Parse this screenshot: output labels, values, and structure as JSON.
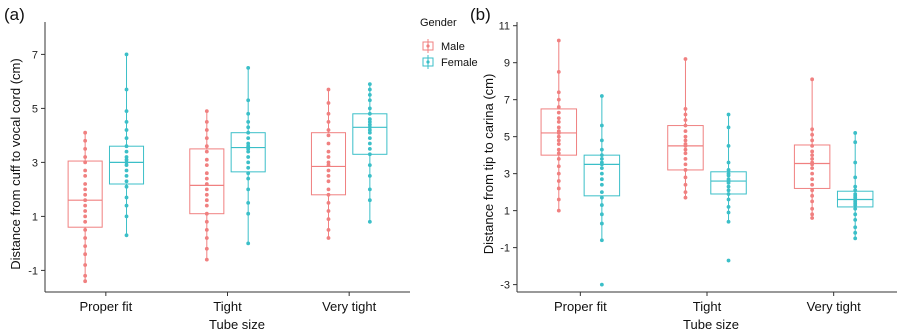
{
  "colors": {
    "Male": "#F08080",
    "Female": "#3BBFC8"
  },
  "legend": {
    "title": "Gender",
    "items": [
      {
        "name": "Male",
        "color": "#F08080"
      },
      {
        "name": "Female",
        "color": "#3BBFC8"
      }
    ]
  },
  "chart_data": [
    {
      "type": "box",
      "panel_label": "(a)",
      "xlabel": "Tube size",
      "ylabel": "Distance from cuff to vocal cord (cm)",
      "categories": [
        "Proper fit",
        "Tight",
        "Very tight"
      ],
      "ylim": [
        -1.8,
        8.2
      ],
      "yticks": [
        -1,
        1,
        3,
        5,
        7
      ],
      "series": [
        {
          "name": "Male",
          "boxes": [
            {
              "q1": 0.6,
              "median": 1.6,
              "q3": 3.05,
              "whisker_low": -1.4,
              "whisker_high": 4.1,
              "points": [
                4.1,
                3.8,
                3.5,
                3.2,
                3.0,
                2.7,
                2.5,
                2.2,
                2.0,
                1.8,
                1.6,
                1.4,
                1.2,
                1.0,
                0.8,
                0.5,
                0.2,
                -0.1,
                -0.4,
                -0.8,
                -1.2,
                -1.4
              ]
            },
            {
              "q1": 1.1,
              "median": 2.15,
              "q3": 3.5,
              "whisker_low": -0.6,
              "whisker_high": 4.9,
              "points": [
                4.9,
                4.5,
                4.2,
                3.9,
                3.6,
                3.4,
                3.1,
                2.9,
                2.6,
                2.4,
                2.2,
                2.0,
                1.8,
                1.6,
                1.4,
                1.1,
                0.8,
                0.5,
                0.2,
                -0.2,
                -0.6
              ]
            },
            {
              "q1": 1.8,
              "median": 2.85,
              "q3": 4.1,
              "whisker_low": 0.2,
              "whisker_high": 5.7,
              "points": [
                5.7,
                5.2,
                4.8,
                4.5,
                4.2,
                4.0,
                3.7,
                3.4,
                3.2,
                3.0,
                2.9,
                2.7,
                2.5,
                2.3,
                2.0,
                1.8,
                1.5,
                1.2,
                0.9,
                0.5,
                0.2
              ]
            }
          ]
        },
        {
          "name": "Female",
          "boxes": [
            {
              "q1": 2.2,
              "median": 3.0,
              "q3": 3.6,
              "whisker_low": 0.3,
              "whisker_high": 7.0,
              "points": [
                7.0,
                5.7,
                4.9,
                4.5,
                4.2,
                3.9,
                3.6,
                3.4,
                3.2,
                3.1,
                3.0,
                2.9,
                2.7,
                2.5,
                2.3,
                2.1,
                1.7,
                1.4,
                1.0,
                0.3
              ]
            },
            {
              "q1": 2.65,
              "median": 3.55,
              "q3": 4.1,
              "whisker_low": 0.0,
              "whisker_high": 6.5,
              "points": [
                6.5,
                5.3,
                4.8,
                4.5,
                4.3,
                4.1,
                3.9,
                3.7,
                3.6,
                3.5,
                3.4,
                3.2,
                3.0,
                2.8,
                2.6,
                2.4,
                2.0,
                1.5,
                1.1,
                0.0
              ]
            },
            {
              "q1": 3.3,
              "median": 4.3,
              "q3": 4.8,
              "whisker_low": 0.8,
              "whisker_high": 5.9,
              "points": [
                5.9,
                5.7,
                5.5,
                5.3,
                5.0,
                4.8,
                4.6,
                4.5,
                4.4,
                4.3,
                4.2,
                4.1,
                3.9,
                3.7,
                3.5,
                3.3,
                2.9,
                2.5,
                2.0,
                1.6,
                0.8
              ]
            }
          ]
        }
      ]
    },
    {
      "type": "box",
      "panel_label": "(b)",
      "xlabel": "Tube size",
      "ylabel": "Distance from tip to carina (cm)",
      "categories": [
        "Proper fit",
        "Tight",
        "Very tight"
      ],
      "ylim": [
        -3.4,
        11.2
      ],
      "yticks": [
        -3,
        -1,
        1,
        3,
        5,
        7,
        9,
        11
      ],
      "series": [
        {
          "name": "Male",
          "boxes": [
            {
              "q1": 4.0,
              "median": 5.2,
              "q3": 6.5,
              "whisker_low": 1.0,
              "whisker_high": 10.2,
              "points": [
                10.2,
                8.5,
                7.4,
                7.0,
                6.6,
                6.3,
                6.0,
                5.8,
                5.5,
                5.3,
                5.2,
                5.0,
                4.8,
                4.6,
                4.3,
                4.1,
                3.8,
                3.4,
                3.0,
                2.6,
                2.2,
                1.6,
                1.0
              ]
            },
            {
              "q1": 3.2,
              "median": 4.5,
              "q3": 5.6,
              "whisker_low": 1.7,
              "whisker_high": 9.2,
              "points": [
                9.2,
                6.5,
                6.2,
                5.9,
                5.6,
                5.3,
                5.0,
                4.8,
                4.6,
                4.5,
                4.3,
                4.1,
                3.8,
                3.5,
                3.2,
                2.8,
                2.4,
                2.0,
                1.7
              ]
            },
            {
              "q1": 2.2,
              "median": 3.55,
              "q3": 4.55,
              "whisker_low": 0.6,
              "whisker_high": 8.1,
              "points": [
                8.1,
                5.4,
                5.1,
                4.8,
                4.5,
                4.2,
                4.0,
                3.8,
                3.6,
                3.5,
                3.3,
                3.0,
                2.7,
                2.4,
                2.1,
                1.8,
                1.5,
                1.1,
                0.8,
                0.6
              ]
            }
          ]
        },
        {
          "name": "Female",
          "boxes": [
            {
              "q1": 1.8,
              "median": 3.5,
              "q3": 4.0,
              "whisker_low": -0.6,
              "whisker_high": 7.2,
              "points": [
                7.2,
                5.6,
                4.8,
                4.3,
                4.0,
                3.8,
                3.6,
                3.5,
                3.3,
                3.0,
                2.7,
                2.4,
                2.0,
                1.7,
                1.3,
                0.8,
                0.3,
                -0.6,
                -3.0
              ]
            },
            {
              "q1": 1.9,
              "median": 2.6,
              "q3": 3.1,
              "whisker_low": 0.4,
              "whisker_high": 6.2,
              "points": [
                6.2,
                5.5,
                4.5,
                3.6,
                3.2,
                3.0,
                2.9,
                2.7,
                2.6,
                2.5,
                2.3,
                2.1,
                1.9,
                1.6,
                1.2,
                0.9,
                0.4,
                -1.7
              ]
            },
            {
              "q1": 1.2,
              "median": 1.6,
              "q3": 2.05,
              "whisker_low": -0.5,
              "whisker_high": 5.2,
              "points": [
                5.2,
                4.7,
                3.6,
                2.8,
                2.3,
                2.1,
                1.9,
                1.8,
                1.7,
                1.6,
                1.5,
                1.4,
                1.3,
                1.1,
                0.8,
                0.5,
                0.1,
                -0.2,
                -0.5
              ]
            }
          ]
        }
      ]
    }
  ]
}
